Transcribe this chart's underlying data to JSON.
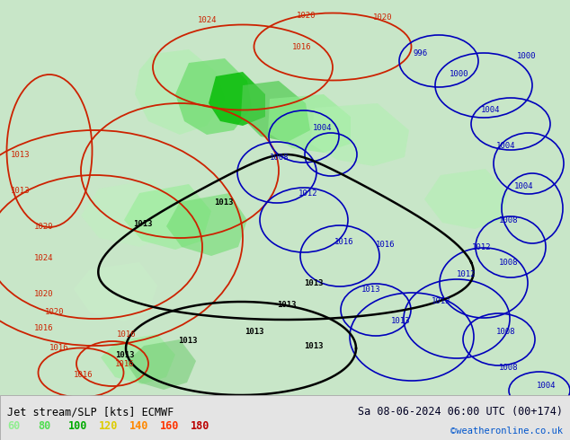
{
  "title_left": "Jet stream/SLP [kts] ECMWF",
  "title_right": "Sa 08-06-2024 06:00 UTC (00+174)",
  "credit": "©weatheronline.co.uk",
  "legend_values": [
    "60",
    "80",
    "100",
    "120",
    "140",
    "160",
    "180"
  ],
  "legend_colors": [
    "#90ee90",
    "#50dd50",
    "#00aa00",
    "#ddcc00",
    "#ff8800",
    "#ff3300",
    "#bb0000"
  ],
  "bg_color": "#e0ece0",
  "bottom_bar_color": "#e4e4e4",
  "figsize": [
    6.34,
    4.9
  ],
  "dpi": 100
}
